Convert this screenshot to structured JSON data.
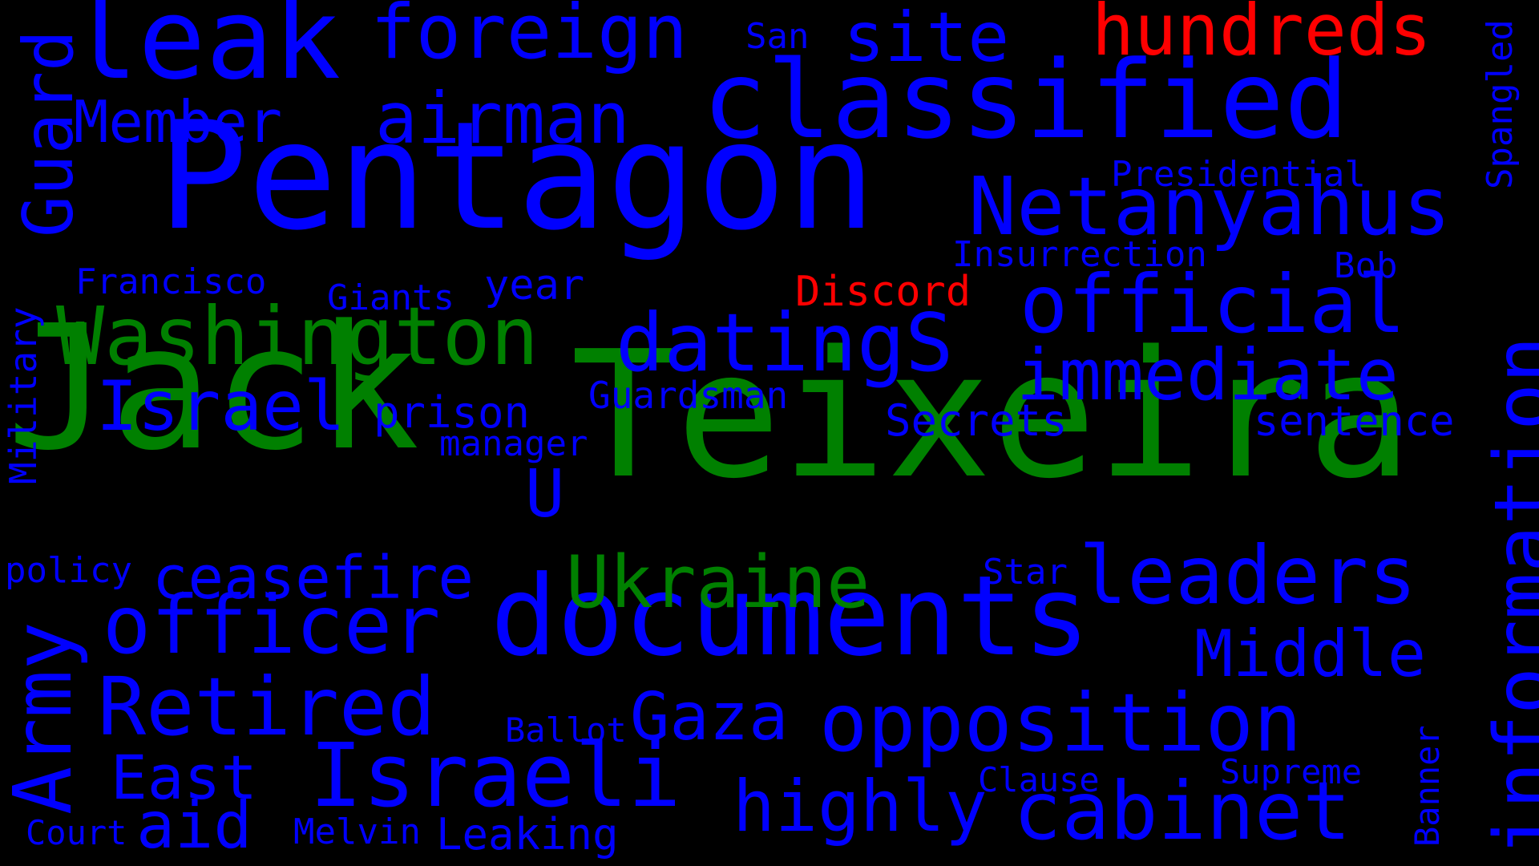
{
  "background": "#000000",
  "colors": {
    "blue": "#0000FF",
    "green": "#008000",
    "red": "#FF0000"
  },
  "words": [
    {
      "text": "Jack",
      "color": "green"
    },
    {
      "text": "Teixeira",
      "color": "green"
    },
    {
      "text": "Pentagon",
      "color": "blue"
    },
    {
      "text": "classified",
      "color": "blue"
    },
    {
      "text": "leak",
      "color": "blue"
    },
    {
      "text": "documents",
      "color": "blue"
    },
    {
      "text": "information",
      "color": "blue"
    },
    {
      "text": "foreign",
      "color": "blue"
    },
    {
      "text": "site",
      "color": "blue"
    },
    {
      "text": "hundreds",
      "color": "red"
    },
    {
      "text": "Netanyahus",
      "color": "blue"
    },
    {
      "text": "official",
      "color": "blue"
    },
    {
      "text": "Washington",
      "color": "green"
    },
    {
      "text": "datingS",
      "color": "blue"
    },
    {
      "text": "airman",
      "color": "blue"
    },
    {
      "text": "Member",
      "color": "blue"
    },
    {
      "text": "Guard",
      "color": "blue"
    },
    {
      "text": "immediate",
      "color": "blue"
    },
    {
      "text": "opposition",
      "color": "blue"
    },
    {
      "text": "officer",
      "color": "blue"
    },
    {
      "text": "Retired",
      "color": "blue"
    },
    {
      "text": "Israeli",
      "color": "blue"
    },
    {
      "text": "Israel",
      "color": "blue"
    },
    {
      "text": "leaders",
      "color": "blue"
    },
    {
      "text": "cabinet",
      "color": "blue"
    },
    {
      "text": "highly",
      "color": "blue"
    },
    {
      "text": "Army",
      "color": "blue"
    },
    {
      "text": "Ukraine",
      "color": "green"
    },
    {
      "text": "Middle",
      "color": "blue"
    },
    {
      "text": "ceasefire",
      "color": "blue"
    },
    {
      "text": "Gaza",
      "color": "blue"
    },
    {
      "text": "East",
      "color": "blue"
    },
    {
      "text": "aid",
      "color": "blue"
    },
    {
      "text": "U",
      "color": "blue"
    },
    {
      "text": "Discord",
      "color": "red"
    },
    {
      "text": "prison",
      "color": "blue"
    },
    {
      "text": "Secrets",
      "color": "blue"
    },
    {
      "text": "sentence",
      "color": "blue"
    },
    {
      "text": "Guardsman",
      "color": "blue"
    },
    {
      "text": "Insurrection",
      "color": "blue"
    },
    {
      "text": "Presidential",
      "color": "blue"
    },
    {
      "text": "Francisco",
      "color": "blue"
    },
    {
      "text": "Giants",
      "color": "blue"
    },
    {
      "text": "year",
      "color": "blue"
    },
    {
      "text": "manager",
      "color": "blue"
    },
    {
      "text": "Military",
      "color": "blue"
    },
    {
      "text": "policy",
      "color": "blue"
    },
    {
      "text": "Star",
      "color": "blue"
    },
    {
      "text": "Spangled",
      "color": "blue"
    },
    {
      "text": "Bob",
      "color": "blue"
    },
    {
      "text": "San",
      "color": "blue"
    },
    {
      "text": "Ballot",
      "color": "blue"
    },
    {
      "text": "Clause",
      "color": "blue"
    },
    {
      "text": "Supreme",
      "color": "blue"
    },
    {
      "text": "Banner",
      "color": "blue"
    },
    {
      "text": "Court",
      "color": "blue"
    },
    {
      "text": "Melvin",
      "color": "blue"
    },
    {
      "text": "Leaking",
      "color": "blue"
    }
  ]
}
